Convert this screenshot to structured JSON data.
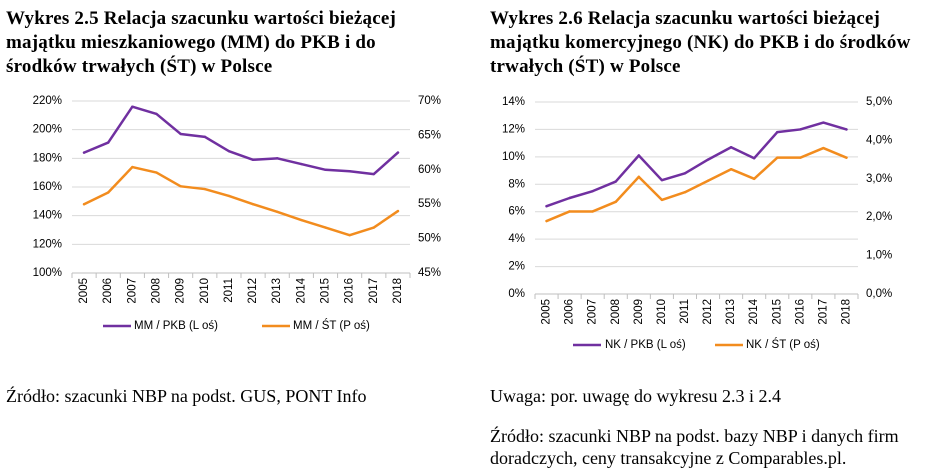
{
  "chart_data": [
    {
      "type": "line",
      "title_lines": [
        "Wykres 2.5 Relacja szacunku wartości bieżącej",
        "majątku mieszkaniowego (MM) do PKB i do",
        "środków trwałych (ŚT) w Polsce"
      ],
      "categories": [
        "2005",
        "2006",
        "2007",
        "2008",
        "2009",
        "2010",
        "2011",
        "2012",
        "2013",
        "2014",
        "2015",
        "2016",
        "2017",
        "2018"
      ],
      "y_left": {
        "min": 100,
        "max": 220,
        "ticks": [
          100,
          120,
          140,
          160,
          180,
          200,
          220
        ],
        "tick_labels": [
          "100%",
          "120%",
          "140%",
          "160%",
          "180%",
          "200%",
          "220%"
        ]
      },
      "y_right": {
        "min": 45,
        "max": 70,
        "ticks": [
          45,
          50,
          55,
          60,
          65,
          70
        ],
        "tick_labels": [
          "45%",
          "50%",
          "55%",
          "60%",
          "65%",
          "70%"
        ]
      },
      "series": [
        {
          "name": "MM / PKB (L oś)",
          "axis": "left",
          "color": "#7030A0",
          "values": [
            184,
            191,
            216,
            211,
            197,
            195,
            185,
            179,
            180,
            176,
            172,
            171,
            169,
            184
          ]
        },
        {
          "name": "MM / ŚT (P oś)",
          "axis": "right",
          "color": "#F28C1E",
          "values": [
            55.0,
            56.7,
            60.4,
            59.6,
            57.6,
            57.2,
            56.2,
            55.0,
            53.9,
            52.7,
            51.6,
            50.5,
            51.6,
            54.0
          ]
        }
      ],
      "grid": true,
      "legend": "bottom",
      "notes": [
        "Źródło: szacunki NBP na podst. GUS, PONT Info"
      ]
    },
    {
      "type": "line",
      "title_lines": [
        "Wykres 2.6 Relacja szacunku wartości bieżącej",
        "majątku komercyjnego (NK) do PKB i do środków",
        "trwałych (ŚT) w Polsce"
      ],
      "categories": [
        "2005",
        "2006",
        "2007",
        "2008",
        "2009",
        "2010",
        "2011",
        "2012",
        "2013",
        "2014",
        "2015",
        "2016",
        "2017",
        "2018"
      ],
      "y_left": {
        "min": 0,
        "max": 14,
        "ticks": [
          0,
          2,
          4,
          6,
          8,
          10,
          12,
          14
        ],
        "tick_labels": [
          "0%",
          "2%",
          "4%",
          "6%",
          "8%",
          "10%",
          "12%",
          "14%"
        ]
      },
      "y_right": {
        "min": 0,
        "max": 5,
        "ticks": [
          0,
          1,
          2,
          3,
          4,
          5
        ],
        "tick_labels": [
          "0,0%",
          "1,0%",
          "2,0%",
          "3,0%",
          "4,0%",
          "5,0%"
        ]
      },
      "series": [
        {
          "name": "NK / PKB (L oś)",
          "axis": "left",
          "color": "#7030A0",
          "values": [
            6.4,
            7.0,
            7.5,
            8.2,
            10.1,
            8.3,
            8.8,
            9.8,
            10.7,
            9.9,
            11.8,
            12.0,
            12.5,
            12.0
          ]
        },
        {
          "name": "NK / ŚT (P oś)",
          "axis": "right",
          "color": "#F28C1E",
          "values": [
            1.9,
            2.15,
            2.15,
            2.4,
            3.05,
            2.45,
            2.65,
            2.95,
            3.25,
            3.0,
            3.55,
            3.55,
            3.8,
            3.55
          ]
        }
      ],
      "grid": true,
      "legend": "bottom",
      "notes": [
        "Uwaga: por. uwagę do wykresu 2.3 i 2.4",
        "Źródło: szacunki NBP na podst. bazy NBP i danych firm",
        "doradczych, ceny transakcyjne z Comparables.pl."
      ]
    }
  ]
}
